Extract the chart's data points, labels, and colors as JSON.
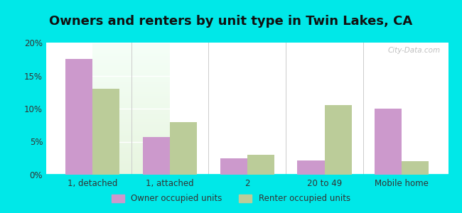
{
  "title": "Owners and renters by unit type in Twin Lakes, CA",
  "categories": [
    "1, detached",
    "1, attached",
    "2",
    "20 to 49",
    "Mobile home"
  ],
  "owner_values": [
    17.5,
    5.7,
    2.5,
    2.2,
    10.0
  ],
  "renter_values": [
    13.0,
    8.0,
    3.0,
    10.5,
    2.0
  ],
  "owner_color": "#cc99cc",
  "renter_color": "#bbcc99",
  "background_outer": "#00e8e8",
  "background_inner_top": "#f5fff8",
  "background_inner_bottom": "#e8f5e0",
  "ylim": [
    0,
    20
  ],
  "yticks": [
    0,
    5,
    10,
    15,
    20
  ],
  "ytick_labels": [
    "0%",
    "5%",
    "10%",
    "15%",
    "20%"
  ],
  "bar_width": 0.35,
  "legend_owner": "Owner occupied units",
  "legend_renter": "Renter occupied units",
  "title_fontsize": 13,
  "watermark": "City-Data.com"
}
